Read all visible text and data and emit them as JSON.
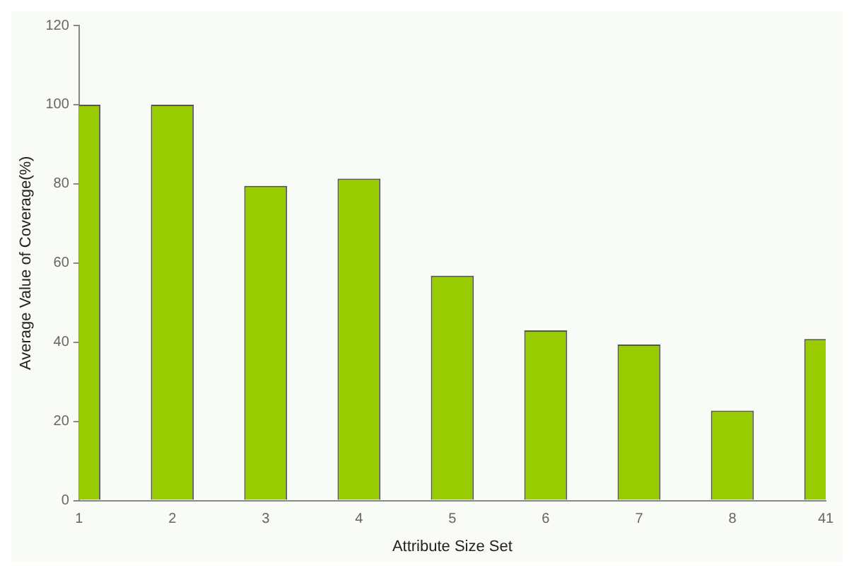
{
  "chart_data": {
    "type": "bar",
    "xlabel": "Attribute Size Set",
    "ylabel": "Average Value of Coverage(%)",
    "categories": [
      "1",
      "2",
      "3",
      "4",
      "5",
      "6",
      "7",
      "8",
      "41"
    ],
    "values": [
      100,
      100,
      79.5,
      81.3,
      56.8,
      43.0,
      39.4,
      22.7,
      40.8
    ],
    "color": "#99cc00",
    "ylim": [
      0,
      120
    ],
    "yticks": [
      0,
      20,
      40,
      60,
      80,
      100,
      120
    ],
    "grid": false,
    "legend": false
  }
}
